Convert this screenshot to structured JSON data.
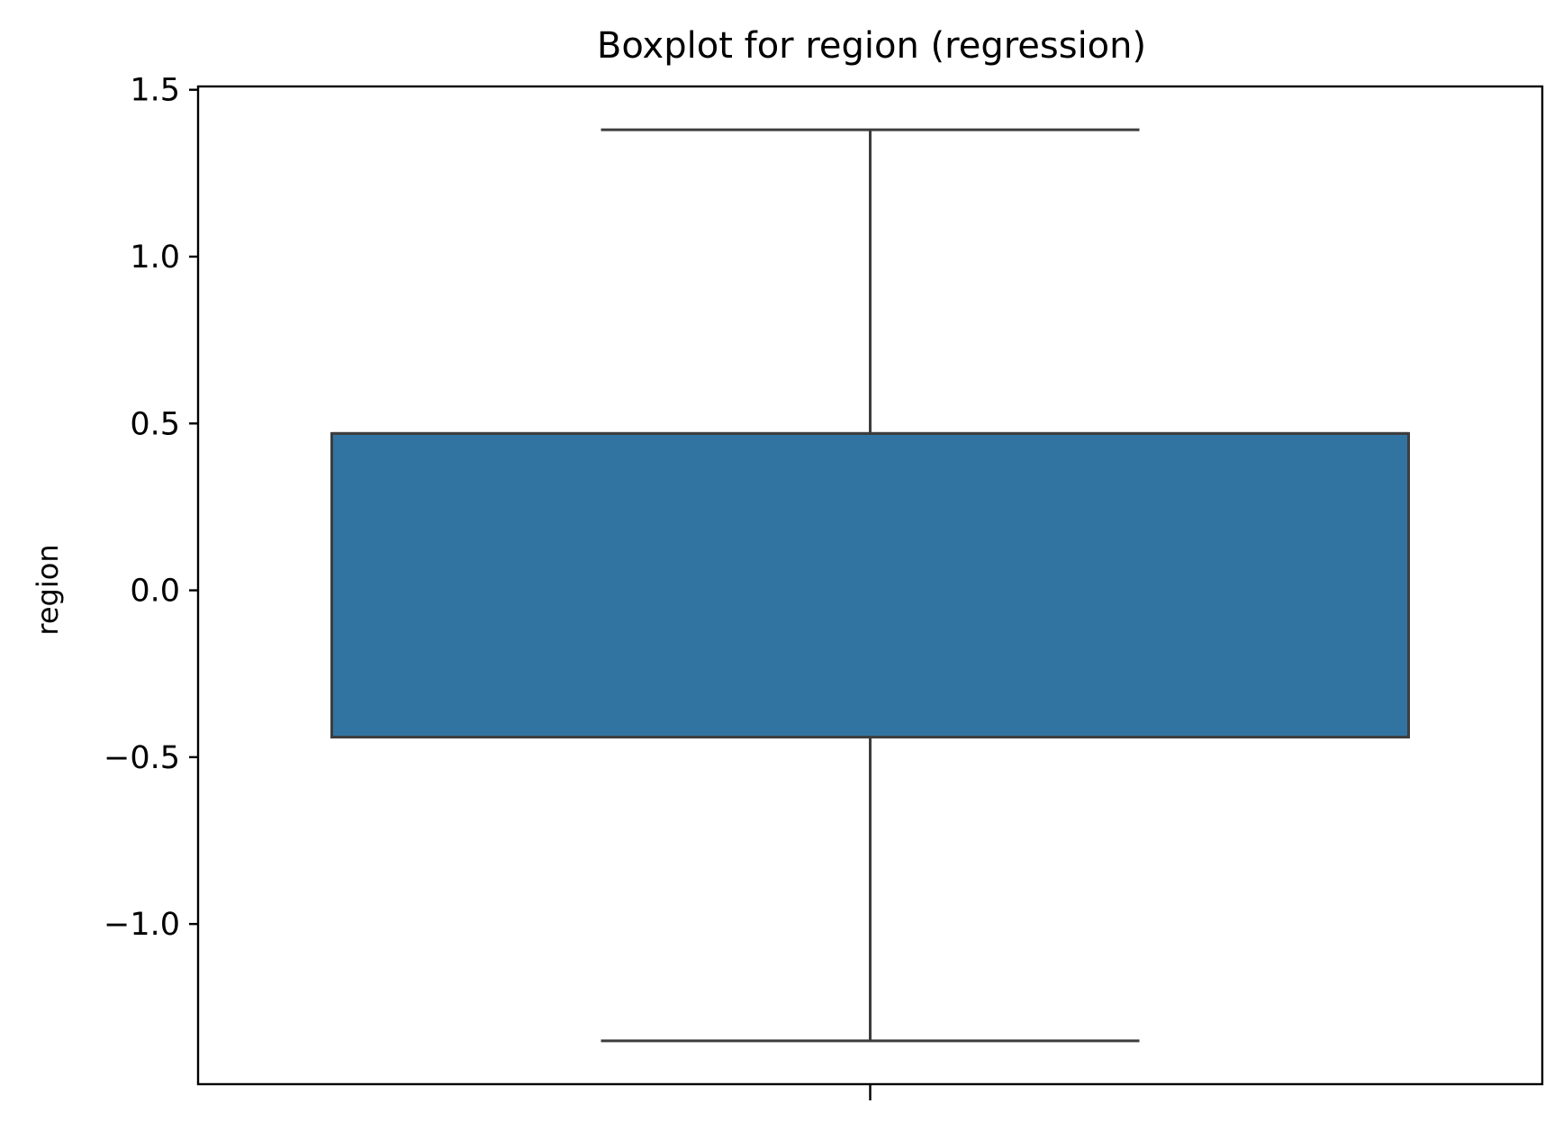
{
  "chart_data": {
    "type": "boxplot",
    "title": "Boxplot for region (regression)",
    "xlabel": "",
    "ylabel": "region",
    "ylim": [
      -1.48,
      1.51
    ],
    "yticks": [
      -1.0,
      -0.5,
      0.0,
      0.5,
      1.0,
      1.5
    ],
    "ytick_labels": [
      "−1.0",
      "−0.5",
      "0.0",
      "0.5",
      "1.0",
      "1.5"
    ],
    "grid": false,
    "box": {
      "whisker_low": -1.35,
      "q1": -0.44,
      "median": 0.47,
      "q3": 0.47,
      "whisker_high": 1.38
    },
    "colors": {
      "box_fill": "#3274a1",
      "line": "#3d3d3d",
      "axes": "#000000",
      "background": "#ffffff"
    }
  }
}
